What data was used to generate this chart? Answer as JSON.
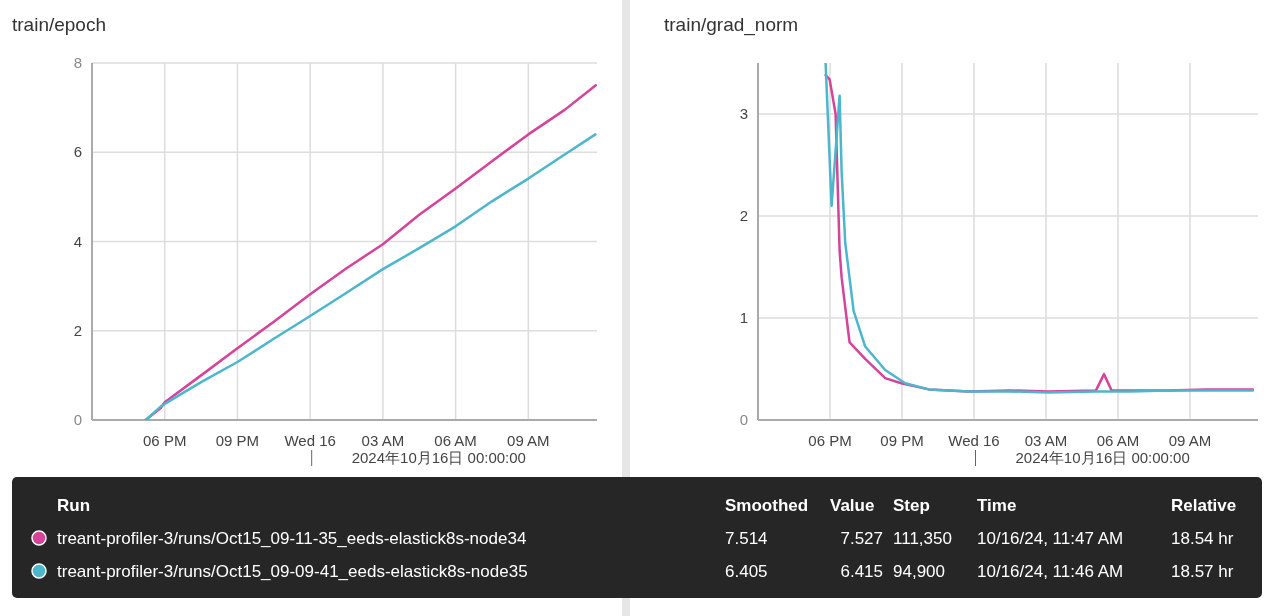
{
  "chart_data": [
    {
      "type": "line",
      "title": "train/epoch",
      "xlim": [
        "2024-10-15T15:00",
        "2024-10-16T11:50"
      ],
      "xticks": [
        {
          "value": "2024-10-15T18:00",
          "label": "06 PM"
        },
        {
          "value": "2024-10-15T21:00",
          "label": "09 PM"
        },
        {
          "value": "2024-10-16T00:00",
          "label": "Wed 16"
        },
        {
          "value": "2024-10-16T03:00",
          "label": "03 AM"
        },
        {
          "value": "2024-10-16T06:00",
          "label": "06 AM"
        },
        {
          "value": "2024-10-16T09:00",
          "label": "09 AM"
        }
      ],
      "ylim": [
        0,
        8
      ],
      "yticks": [
        0,
        2,
        4,
        6,
        8
      ],
      "grid": true,
      "annotations": [
        "2024年10月16日 00:00:00"
      ],
      "series": [
        {
          "color": "#d6439a",
          "x": [
            "2024-10-15T17:13",
            "2024-10-15T17:50",
            "2024-10-15T18:00",
            "2024-10-15T19:30",
            "2024-10-15T21:00",
            "2024-10-15T22:30",
            "2024-10-16T00:00",
            "2024-10-16T01:30",
            "2024-10-16T03:00",
            "2024-10-16T04:30",
            "2024-10-16T06:00",
            "2024-10-16T07:30",
            "2024-10-16T09:00",
            "2024-10-16T10:30",
            "2024-10-16T11:47"
          ],
          "values": [
            0,
            0.27,
            0.4,
            1.0,
            1.61,
            2.2,
            2.82,
            3.4,
            3.94,
            4.6,
            5.19,
            5.8,
            6.4,
            6.95,
            7.5
          ]
        },
        {
          "color": "#4cb6cd",
          "x": [
            "2024-10-15T17:13",
            "2024-10-15T17:50",
            "2024-10-15T18:00",
            "2024-10-15T19:30",
            "2024-10-15T21:00",
            "2024-10-15T22:30",
            "2024-10-16T00:00",
            "2024-10-16T01:30",
            "2024-10-16T03:00",
            "2024-10-16T04:30",
            "2024-10-16T06:00",
            "2024-10-16T07:30",
            "2024-10-16T09:00",
            "2024-10-16T10:30",
            "2024-10-16T11:46"
          ],
          "values": [
            0,
            0.3,
            0.36,
            0.85,
            1.3,
            1.82,
            2.33,
            2.85,
            3.38,
            3.85,
            4.34,
            4.9,
            5.41,
            5.95,
            6.4
          ]
        }
      ]
    },
    {
      "type": "line",
      "title": "train/grad_norm",
      "xlim": [
        "2024-10-15T15:00",
        "2024-10-16T11:50"
      ],
      "xticks": [
        {
          "value": "2024-10-15T18:00",
          "label": "06 PM"
        },
        {
          "value": "2024-10-15T21:00",
          "label": "09 PM"
        },
        {
          "value": "2024-10-16T00:00",
          "label": "Wed 16"
        },
        {
          "value": "2024-10-16T03:00",
          "label": "03 AM"
        },
        {
          "value": "2024-10-16T06:00",
          "label": "06 AM"
        },
        {
          "value": "2024-10-16T09:00",
          "label": "09 AM"
        }
      ],
      "ylim": [
        0,
        3.5
      ],
      "yticks": [
        0,
        1,
        2,
        3
      ],
      "grid": true,
      "annotations": [
        "2024年10月16日 00:00:00"
      ],
      "series": [
        {
          "color": "#d6439a",
          "x": [
            "2024-10-15T17:49",
            "2024-10-15T17:59",
            "2024-10-15T18:14",
            "2024-10-15T18:24",
            "2024-10-15T18:29",
            "2024-10-15T18:38",
            "2024-10-15T18:49",
            "2024-10-15T19:28",
            "2024-10-15T20:18",
            "2024-10-15T20:58",
            "2024-10-15T22:07",
            "2024-10-15T23:47",
            "2024-10-16T01:30",
            "2024-10-16T03:05",
            "2024-10-16T05:05",
            "2024-10-16T05:25",
            "2024-10-16T05:44",
            "2024-10-16T08:04",
            "2024-10-16T09:40",
            "2024-10-16T11:37"
          ],
          "values": [
            3.38,
            3.34,
            3.0,
            1.66,
            1.4,
            1.11,
            0.76,
            0.6,
            0.41,
            0.36,
            0.3,
            0.28,
            0.29,
            0.28,
            0.29,
            0.45,
            0.29,
            0.29,
            0.3,
            0.3
          ]
        },
        {
          "color": "#4cb6cd",
          "x": [
            "2024-10-15T17:49",
            "2024-10-15T18:04",
            "2024-10-15T18:24",
            "2024-10-15T18:29",
            "2024-10-15T18:38",
            "2024-10-15T18:59",
            "2024-10-15T19:28",
            "2024-10-15T20:18",
            "2024-10-15T21:08",
            "2024-10-15T22:07",
            "2024-10-15T23:47",
            "2024-10-16T01:30",
            "2024-10-16T03:05",
            "2024-10-16T05:05",
            "2024-10-16T06:30",
            "2024-10-16T08:04",
            "2024-10-16T09:40",
            "2024-10-16T11:37"
          ],
          "values": [
            3.5,
            2.1,
            3.18,
            2.44,
            1.74,
            1.07,
            0.72,
            0.49,
            0.36,
            0.3,
            0.28,
            0.28,
            0.27,
            0.28,
            0.28,
            0.29,
            0.29,
            0.29
          ]
        }
      ]
    },
    {
      "type": "other",
      "colors": [
        "#d6439a",
        "#4cb6cd"
      ],
      "annotations": [
        "Run",
        "Smoothed",
        "Value",
        "Step",
        "Time",
        "Relative",
        "treant-profiler-3/runs/Oct15_09-11-35_eeds-elastick8s-node34",
        "7.514",
        "7.527",
        "111,350",
        "10/16/24, 11:47 AM",
        "18.54 hr",
        "treant-profiler-3/runs/Oct15_09-09-41_eeds-elastick8s-node35",
        "6.405",
        "6.415",
        "94,900",
        "10/16/24, 11:46 AM",
        "18.57 hr"
      ]
    }
  ]
}
